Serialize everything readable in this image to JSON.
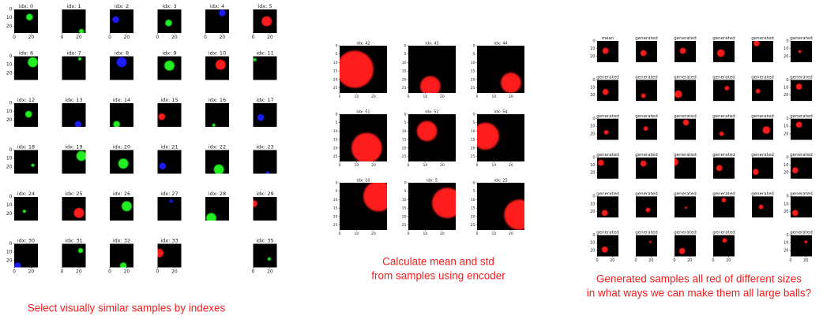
{
  "grids": [
    {
      "caption": [
        "Select visually similar samples by indexes"
      ],
      "xlim": [
        0,
        28
      ],
      "ylim": [
        0,
        28
      ],
      "xticks": [
        0,
        20
      ],
      "yticks": [
        0,
        10,
        20
      ],
      "cells": [
        {
          "title": "idx: 0",
          "ball": {
            "x": 18,
            "y": 9,
            "r": 4,
            "color": "#22ee22"
          }
        },
        {
          "title": "idx: 1",
          "ball": {
            "x": 23,
            "y": 26,
            "r": 3,
            "color": "#22ee22"
          }
        },
        {
          "title": "idx: 2",
          "ball": {
            "x": 7,
            "y": 12,
            "r": 4,
            "color": "#1a1aff"
          }
        },
        {
          "title": "idx: 3",
          "ball": {
            "x": 13,
            "y": 16,
            "r": 4,
            "color": "#22ee22"
          }
        },
        {
          "title": "idx: 4",
          "ball": {
            "x": 20,
            "y": 4,
            "r": 4,
            "color": "#1a1aff"
          }
        },
        {
          "title": "idx: 5",
          "ball": {
            "x": 16,
            "y": 14,
            "r": 6,
            "color": "#ff1a1a"
          }
        },
        {
          "title": "idx: 6",
          "ball": {
            "x": 22,
            "y": 7,
            "r": 6,
            "color": "#22ee22"
          }
        },
        {
          "title": "idx: 7",
          "ball": {
            "x": 21,
            "y": 3,
            "r": 2,
            "color": "#22ee22"
          }
        },
        {
          "title": "idx: 8",
          "ball": {
            "x": 14,
            "y": 7,
            "r": 6,
            "color": "#1a1aff"
          }
        },
        {
          "title": "idx: 9",
          "ball": {
            "x": 14,
            "y": 11,
            "r": 6,
            "color": "#22ee22"
          }
        },
        {
          "title": "idx: 10",
          "ball": {
            "x": 18,
            "y": 10,
            "r": 6,
            "color": "#ff1a1a"
          }
        },
        {
          "title": "idx: 11",
          "ball": {
            "x": 2,
            "y": 4,
            "r": 2,
            "color": "#22ee22"
          }
        },
        {
          "title": "idx: 12",
          "ball": {
            "x": 17,
            "y": 13,
            "r": 4,
            "color": "#22ee22"
          }
        },
        {
          "title": "idx: 13",
          "ball": {
            "x": 19,
            "y": 25,
            "r": 4,
            "color": "#1a1aff"
          }
        },
        {
          "title": "idx: 14",
          "ball": {
            "x": 8,
            "y": 25,
            "r": 4,
            "color": "#22ee22"
          }
        },
        {
          "title": "idx: 15",
          "ball": {
            "x": 5,
            "y": 16,
            "r": 4,
            "color": "#ff1a1a"
          }
        },
        {
          "title": "idx: 16",
          "ball": {
            "x": 10,
            "y": 26,
            "r": 2,
            "color": "#22ee22"
          }
        },
        {
          "title": "idx: 17",
          "ball": {
            "x": 9,
            "y": 17,
            "r": 4,
            "color": "#1a1aff"
          }
        },
        {
          "title": "idx: 18",
          "ball": {
            "x": 22,
            "y": 18,
            "r": 2,
            "color": "#22ee22"
          }
        },
        {
          "title": "idx: 19",
          "ball": {
            "x": 23,
            "y": 7,
            "r": 6,
            "color": "#22ee22"
          }
        },
        {
          "title": "idx: 20",
          "ball": {
            "x": 16,
            "y": 16,
            "r": 6,
            "color": "#22ee22"
          }
        },
        {
          "title": "idx: 21",
          "ball": {
            "x": 6,
            "y": 19,
            "r": 4,
            "color": "#1a1aff"
          }
        },
        {
          "title": "idx: 22",
          "ball": {
            "x": 16,
            "y": 23,
            "r": 6,
            "color": "#22ee22"
          }
        },
        {
          "title": "idx: 23",
          "ball": {
            "x": 17,
            "y": 27,
            "r": 2,
            "color": "#1a1aff"
          }
        },
        {
          "title": "idx: 24",
          "ball": {
            "x": 12,
            "y": 17,
            "r": 2,
            "color": "#22ee22"
          }
        },
        {
          "title": "idx: 25",
          "ball": {
            "x": 20,
            "y": 19,
            "r": 6,
            "color": "#ff1a1a"
          }
        },
        {
          "title": "idx: 26",
          "ball": {
            "x": 20,
            "y": 11,
            "r": 6,
            "color": "#22ee22"
          }
        },
        {
          "title": "idx: 27",
          "ball": {
            "x": 16,
            "y": 5,
            "r": 2,
            "color": "#1a1aff"
          }
        },
        {
          "title": "idx: 28",
          "ball": {
            "x": 7,
            "y": 25,
            "r": 6,
            "color": "#22ee22"
          }
        },
        {
          "title": "idx: 29",
          "ball": {
            "x": 1,
            "y": 8,
            "r": 4,
            "color": "#ff1a1a"
          }
        },
        {
          "title": "idx: 30",
          "ball": {
            "x": 4,
            "y": 26,
            "r": 4,
            "color": "#1a1aff"
          }
        },
        {
          "title": "idx: 31",
          "ball": {
            "x": 22,
            "y": 8,
            "r": 3,
            "color": "#22ee22"
          }
        },
        {
          "title": "idx: 32",
          "ball": {
            "x": 16,
            "y": 26,
            "r": 4,
            "color": "#22ee22"
          }
        },
        {
          "title": "idx: 33",
          "ball": {
            "x": 2,
            "y": 11,
            "r": 5,
            "color": "#ff1a1a"
          }
        },
        null,
        {
          "title": "idx: 35",
          "ball": {
            "x": 19,
            "y": 18,
            "r": 2,
            "color": "#22ee22"
          }
        }
      ]
    },
    {
      "caption": [
        "Calculate mean and std",
        "from samples using encoder"
      ],
      "xlim": [
        0,
        28
      ],
      "ylim": [
        0,
        28
      ],
      "xticks": [
        0,
        10,
        20
      ],
      "yticks": [
        0,
        5,
        10,
        15,
        20,
        25
      ],
      "cells": [
        {
          "title": "idx: 42",
          "ball": {
            "x": 9,
            "y": 14,
            "r": 11,
            "color": "#ff1a1a"
          }
        },
        {
          "title": "idx: 43",
          "ball": {
            "x": 13,
            "y": 24,
            "r": 6,
            "color": "#ff1a1a"
          }
        },
        {
          "title": "idx: 44",
          "ball": {
            "x": 20,
            "y": 22,
            "r": 6,
            "color": "#ff1a1a"
          }
        },
        {
          "title": "idx: 51",
          "ball": {
            "x": 16,
            "y": 20,
            "r": 9,
            "color": "#ff1a1a"
          }
        },
        {
          "title": "idx: 52",
          "ball": {
            "x": 11,
            "y": 10,
            "r": 6,
            "color": "#ff1a1a"
          }
        },
        {
          "title": "idx: 54",
          "ball": {
            "x": 5,
            "y": 13,
            "r": 8,
            "color": "#ff1a1a"
          }
        },
        {
          "title": "idx: 10",
          "ball": {
            "x": 23,
            "y": 8,
            "r": 9,
            "color": "#ff1a1a"
          }
        },
        {
          "title": "idx: 5",
          "ball": {
            "x": 23,
            "y": 12,
            "r": 9,
            "color": "#ff1a1a"
          }
        },
        {
          "title": "idx: 25",
          "ball": {
            "x": 25,
            "y": 19,
            "r": 9,
            "color": "#ff1a1a"
          }
        }
      ]
    },
    {
      "caption": [
        "Generated samples all red of different sizes",
        "in what ways we can make them all large balls?"
      ],
      "xlim": [
        0,
        28
      ],
      "ylim": [
        0,
        28
      ],
      "xticks": [
        0,
        20
      ],
      "yticks": [
        0,
        10,
        20
      ],
      "cells": [
        {
          "title": "mean",
          "ball": {
            "x": 11,
            "y": 13,
            "r": 4,
            "color": "#ff1a1a"
          }
        },
        {
          "title": "generated",
          "ball": {
            "x": 10,
            "y": 16,
            "r": 4,
            "color": "#ff1a1a"
          }
        },
        {
          "title": "generated",
          "ball": {
            "x": 11,
            "y": 13,
            "r": 4,
            "color": "#ff1a1a"
          }
        },
        {
          "title": "generated",
          "ball": {
            "x": 10,
            "y": 16,
            "r": 5,
            "color": "#ff1a1a"
          }
        },
        {
          "title": "generated",
          "ball": {
            "x": 6,
            "y": 3,
            "r": 4,
            "color": "#ff1a1a"
          }
        },
        {
          "title": "generated",
          "ball": {
            "x": 12,
            "y": 14,
            "r": 2,
            "color": "#ff1a1a"
          }
        },
        {
          "title": "generated",
          "ball": {
            "x": 11,
            "y": 16,
            "r": 4,
            "color": "#ff1a1a"
          }
        },
        {
          "title": "generated",
          "ball": {
            "x": 10,
            "y": 21,
            "r": 3,
            "color": "#ff1a1a"
          }
        },
        {
          "title": "generated",
          "ball": {
            "x": 5,
            "y": 19,
            "r": 5,
            "color": "#ff1a1a"
          }
        },
        {
          "title": "generated",
          "ball": {
            "x": 18,
            "y": 11,
            "r": 3,
            "color": "#ff1a1a"
          }
        },
        {
          "title": "generated",
          "ball": {
            "x": 8,
            "y": 15,
            "r": 3,
            "color": "#ff1a1a"
          }
        },
        {
          "title": "generated",
          "ball": {
            "x": 11,
            "y": 9,
            "r": 4,
            "color": "#ff1a1a"
          }
        },
        {
          "title": "generated",
          "ball": {
            "x": 12,
            "y": 18,
            "r": 3,
            "color": "#ff1a1a"
          }
        },
        {
          "title": "generated",
          "ball": {
            "x": 13,
            "y": 13,
            "r": 3,
            "color": "#ff1a1a"
          }
        },
        {
          "title": "generated",
          "ball": {
            "x": 15,
            "y": 5,
            "r": 4,
            "color": "#ff1a1a"
          }
        },
        {
          "title": "generated",
          "ball": {
            "x": 11,
            "y": 20,
            "r": 3,
            "color": "#ff1a1a"
          }
        },
        {
          "title": "generated",
          "ball": {
            "x": 19,
            "y": 15,
            "r": 5,
            "color": "#ff1a1a"
          }
        },
        {
          "title": "generated",
          "ball": {
            "x": 11,
            "y": 8,
            "r": 4,
            "color": "#ff1a1a"
          }
        },
        {
          "title": "generated",
          "ball": {
            "x": 5,
            "y": 7,
            "r": 4,
            "color": "#ff1a1a"
          }
        },
        {
          "title": "generated",
          "ball": {
            "x": 10,
            "y": 8,
            "r": 4,
            "color": "#ff1a1a"
          }
        },
        {
          "title": "generated",
          "ball": {
            "x": 0,
            "y": 6,
            "r": 5,
            "color": "#ff1a1a"
          }
        },
        {
          "title": "generated",
          "ball": {
            "x": 8,
            "y": 14,
            "r": 4,
            "color": "#ff1a1a"
          }
        },
        {
          "title": "generated",
          "ball": {
            "x": 5,
            "y": 19,
            "r": 4,
            "color": "#ff1a1a"
          }
        },
        {
          "title": "generated",
          "ball": {
            "x": 6,
            "y": 17,
            "r": 4,
            "color": "#ff1a1a"
          }
        },
        {
          "title": "generated",
          "ball": {
            "x": 10,
            "y": 22,
            "r": 4,
            "color": "#ff1a1a"
          }
        },
        {
          "title": "generated",
          "ball": {
            "x": 16,
            "y": 18,
            "r": 3,
            "color": "#ff1a1a"
          }
        },
        {
          "title": "generated",
          "ball": {
            "x": 15,
            "y": 15,
            "r": 1.5,
            "color": "#ff1a1a"
          }
        },
        {
          "title": "generated",
          "ball": {
            "x": 14,
            "y": 5,
            "r": 3,
            "color": "#ff1a1a"
          }
        },
        {
          "title": "generated",
          "ball": {
            "x": 12,
            "y": 14,
            "r": 3,
            "color": "#ff1a1a"
          }
        },
        {
          "title": "generated",
          "ball": {
            "x": 6,
            "y": 22,
            "r": 4,
            "color": "#ff1a1a"
          }
        },
        {
          "title": "generated",
          "ball": {
            "x": 10,
            "y": 19,
            "r": 4,
            "color": "#ff1a1a"
          }
        },
        {
          "title": "generated",
          "ball": {
            "x": 19,
            "y": 9,
            "r": 1.5,
            "color": "#ff1a1a"
          }
        },
        {
          "title": "generated",
          "ball": {
            "x": 10,
            "y": 21,
            "r": 4,
            "color": "#ff1a1a"
          }
        },
        {
          "title": "generated",
          "ball": {
            "x": 15,
            "y": 7,
            "r": 3,
            "color": "#ff1a1a"
          }
        },
        null,
        {
          "title": "generated",
          "ball": {
            "x": 20,
            "y": 9,
            "r": 2,
            "color": "#ff1a1a"
          }
        }
      ]
    }
  ]
}
